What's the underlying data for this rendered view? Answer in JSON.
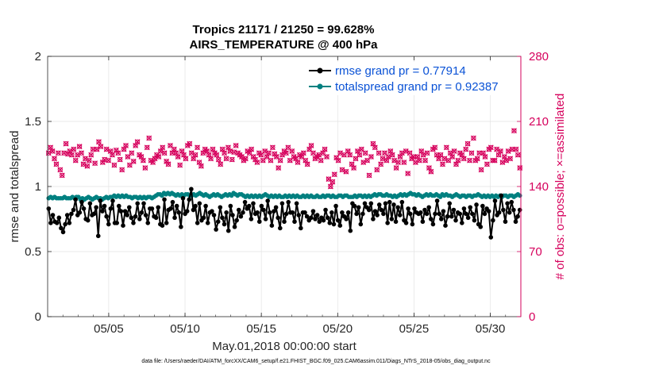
{
  "chart_data": {
    "type": "line",
    "title": "Tropics 21171 / 21250 = 99.628%",
    "subtitle": "AIRS_TEMPERATURE @ 400 hPa",
    "xlabel": "May.01,2018 00:00:00 start",
    "ylabel": "rmse and totalspread",
    "y2label": "# of obs: o=possible; ×=assimilated",
    "footnote": "data file: /Users/raeder/DAI/ATM_forcXX/CAM6_setup/f.e21.FHIST_BGC.f09_025.CAM6assim.011/Diags_NTrS_2018-05/obs_diag_output.nc",
    "xlim": [
      1,
      32
    ],
    "ylim": [
      0,
      2
    ],
    "y2lim": [
      0,
      280
    ],
    "xticks": [
      5,
      10,
      15,
      20,
      25,
      30
    ],
    "xticklabels": [
      "05/05",
      "05/10",
      "05/15",
      "05/20",
      "05/25",
      "05/30"
    ],
    "yticks": [
      0,
      0.5,
      1,
      1.5,
      2
    ],
    "yticklabels": [
      "0",
      "0.5",
      "1",
      "1.5",
      "2"
    ],
    "y2ticks": [
      0,
      70,
      140,
      210,
      280
    ],
    "y2ticklabels": [
      "0",
      "70",
      "140",
      "210",
      "280"
    ],
    "grid": true,
    "legend_position": "top-right",
    "colors": {
      "rmse": "#000000",
      "spread": "#008080",
      "obs": "#d6005c",
      "legend_text": "#0a52d6"
    },
    "series": [
      {
        "name": "rmse grand pr = 0.77914",
        "axis": "left",
        "marker": "circle",
        "values": [
          0.83,
          0.72,
          0.78,
          0.73,
          0.72,
          0.76,
          0.68,
          0.65,
          0.71,
          0.78,
          0.72,
          0.79,
          0.82,
          0.9,
          0.78,
          0.8,
          0.88,
          0.83,
          0.75,
          0.74,
          0.87,
          0.78,
          0.79,
          0.84,
          0.62,
          0.89,
          0.81,
          0.85,
          0.77,
          0.71,
          0.83,
          0.89,
          0.72,
          0.72,
          0.85,
          0.81,
          0.7,
          0.81,
          0.78,
          0.84,
          0.76,
          0.72,
          0.77,
          0.87,
          0.75,
          0.8,
          0.87,
          0.78,
          0.72,
          0.83,
          0.83,
          0.77,
          0.76,
          0.84,
          0.71,
          0.7,
          0.9,
          0.72,
          0.82,
          0.83,
          0.88,
          0.76,
          0.85,
          0.8,
          0.69,
          0.91,
          0.79,
          0.81,
          0.9,
          0.98,
          0.82,
          0.85,
          0.72,
          0.87,
          0.74,
          0.76,
          0.85,
          0.72,
          0.8,
          0.81,
          0.78,
          0.67,
          0.73,
          0.84,
          0.76,
          0.71,
          0.8,
          0.66,
          0.85,
          0.78,
          0.69,
          0.74,
          0.82,
          0.77,
          0.8,
          0.88,
          0.83,
          0.85,
          0.75,
          0.87,
          0.79,
          0.8,
          0.73,
          0.85,
          0.82,
          0.75,
          0.89,
          0.8,
          0.7,
          0.81,
          0.84,
          0.76,
          0.68,
          0.87,
          0.73,
          0.79,
          0.88,
          0.8,
          0.8,
          0.73,
          0.87,
          0.78,
          0.68,
          0.8,
          0.8,
          0.77,
          0.74,
          0.76,
          0.81,
          0.75,
          0.78,
          0.73,
          0.76,
          0.74,
          0.82,
          0.76,
          0.72,
          0.8,
          0.71,
          0.85,
          0.74,
          0.7,
          0.8,
          0.77,
          0.75,
          0.8,
          0.66,
          0.87,
          0.85,
          0.79,
          0.84,
          0.71,
          0.79,
          0.87,
          0.84,
          0.82,
          0.87,
          0.75,
          0.81,
          0.78,
          0.86,
          0.82,
          0.79,
          0.87,
          0.72,
          0.88,
          0.75,
          0.86,
          0.73,
          0.84,
          0.78,
          0.88,
          0.74,
          0.72,
          0.83,
          0.79,
          0.71,
          0.83,
          0.8,
          0.79,
          0.8,
          0.73,
          0.82,
          0.79,
          0.84,
          0.75,
          0.71,
          0.79,
          0.89,
          0.79,
          0.75,
          0.81,
          0.7,
          0.77,
          0.87,
          0.77,
          0.82,
          0.74,
          0.8,
          0.79,
          0.72,
          0.83,
          0.79,
          0.76,
          0.84,
          0.79,
          0.74,
          0.86,
          0.71,
          0.69,
          0.85,
          0.79,
          0.83,
          0.81,
          0.61,
          0.74,
          0.89,
          0.78,
          0.8,
          0.93,
          0.82,
          0.73,
          0.87,
          0.8,
          0.88,
          0.82,
          0.73,
          0.77,
          0.82
        ]
      },
      {
        "name": "totalspread grand pr = 0.92387",
        "axis": "left",
        "marker": "circle",
        "values": [
          0.91,
          0.92,
          0.91,
          0.92,
          0.91,
          0.91,
          0.91,
          0.91,
          0.92,
          0.91,
          0.91,
          0.91,
          0.92,
          0.91,
          0.92,
          0.92,
          0.9,
          0.91,
          0.9,
          0.91,
          0.92,
          0.91,
          0.9,
          0.91,
          0.92,
          0.91,
          0.91,
          0.9,
          0.91,
          0.92,
          0.91,
          0.92,
          0.92,
          0.93,
          0.92,
          0.93,
          0.92,
          0.93,
          0.92,
          0.93,
          0.92,
          0.92,
          0.91,
          0.92,
          0.92,
          0.91,
          0.92,
          0.91,
          0.92,
          0.91,
          0.92,
          0.92,
          0.91,
          0.92,
          0.93,
          0.94,
          0.94,
          0.93,
          0.95,
          0.94,
          0.95,
          0.94,
          0.95,
          0.94,
          0.93,
          0.94,
          0.93,
          0.94,
          0.93,
          0.94,
          0.94,
          0.93,
          0.93,
          0.94,
          0.93,
          0.94,
          0.95,
          0.94,
          0.93,
          0.94,
          0.93,
          0.92,
          0.93,
          0.94,
          0.93,
          0.94,
          0.93,
          0.92,
          0.93,
          0.94,
          0.93,
          0.94,
          0.93,
          0.95,
          0.94,
          0.93,
          0.94,
          0.94,
          0.93,
          0.92,
          0.93,
          0.92,
          0.93,
          0.92,
          0.93,
          0.92,
          0.93,
          0.92,
          0.93,
          0.94,
          0.93,
          0.92,
          0.93,
          0.92,
          0.93,
          0.92,
          0.93,
          0.92,
          0.92,
          0.93,
          0.92,
          0.93,
          0.92,
          0.93,
          0.92,
          0.93,
          0.92,
          0.92,
          0.93,
          0.92,
          0.93,
          0.92,
          0.93,
          0.92,
          0.92,
          0.93,
          0.92,
          0.92,
          0.93,
          0.92,
          0.93,
          0.93,
          0.92,
          0.93,
          0.92,
          0.92,
          0.93,
          0.93,
          0.92,
          0.93,
          0.93,
          0.92,
          0.92,
          0.92,
          0.93,
          0.92,
          0.93,
          0.93,
          0.92,
          0.93,
          0.92,
          0.93,
          0.92,
          0.93,
          0.94,
          0.93,
          0.94,
          0.94,
          0.93,
          0.93,
          0.94,
          0.93,
          0.93,
          0.92,
          0.93,
          0.92,
          0.93,
          0.94,
          0.93,
          0.94,
          0.93,
          0.94,
          0.95,
          0.94,
          0.94,
          0.93,
          0.94,
          0.93,
          0.92,
          0.93,
          0.94,
          0.93,
          0.94,
          0.93,
          0.93,
          0.94,
          0.93,
          0.92,
          0.94,
          0.93,
          0.94,
          0.93,
          0.93,
          0.92,
          0.93,
          0.94,
          0.93,
          0.92,
          0.93,
          0.93,
          0.92,
          0.93,
          0.93,
          0.92,
          0.93,
          0.93,
          0.94,
          0.93,
          0.92,
          0.93,
          0.92,
          0.93,
          0.92,
          0.93,
          0.92,
          0.93,
          0.92,
          0.93,
          0.92,
          0.93,
          0.93,
          0.92,
          0.93,
          0.93,
          0.92,
          0.93,
          0.94,
          0.93
        ]
      }
    ],
    "obs_counts": {
      "name": "# of obs",
      "axis": "right",
      "values": [
        176,
        182,
        178,
        170,
        164,
        176,
        158,
        152,
        176,
        186,
        175,
        178,
        174,
        180,
        168,
        174,
        183,
        176,
        164,
        170,
        162,
        168,
        174,
        180,
        165,
        180,
        188,
        183,
        166,
        169,
        180,
        168,
        178,
        174,
        163,
        179,
        176,
        169,
        158,
        180,
        184,
        172,
        163,
        176,
        167,
        184,
        188,
        174,
        172,
        168,
        160,
        182,
        192,
        168,
        166,
        170,
        174,
        172,
        178,
        182,
        176,
        167,
        164,
        184,
        176,
        180,
        176,
        172,
        163,
        178,
        174,
        170,
        184,
        186,
        176,
        170,
        174,
        182,
        166,
        162,
        176,
        180,
        178,
        174,
        170,
        180,
        176,
        174,
        169,
        164,
        180,
        176,
        170,
        182,
        178,
        169,
        177,
        184,
        176,
        174,
        172,
        168,
        170,
        178,
        176,
        180,
        172,
        169,
        166,
        176,
        174,
        168,
        178,
        172,
        176,
        168,
        182,
        175,
        172,
        160,
        168,
        174,
        178,
        176,
        182,
        168,
        178,
        172,
        170,
        166,
        174,
        172,
        176,
        168,
        164,
        180,
        184,
        176,
        170,
        172,
        174,
        168,
        176,
        180,
        172,
        148,
        140,
        145,
        153,
        171,
        168,
        176,
        158,
        174,
        156,
        178,
        174,
        164,
        160,
        170,
        178,
        174,
        180,
        166,
        176,
        168,
        152,
        172,
        186,
        182,
        158,
        176,
        164,
        170,
        176,
        168,
        172,
        178,
        174,
        168,
        160,
        166,
        172,
        176,
        166,
        178,
        154,
        176,
        170,
        172,
        166,
        172,
        168,
        178,
        174,
        168,
        176,
        160,
        156,
        180,
        182,
        174,
        170,
        174,
        164,
        170,
        182,
        168,
        176,
        172,
        178,
        164,
        168,
        176,
        174,
        170,
        180,
        186,
        168,
        176,
        192,
        168,
        170,
        176,
        158,
        176,
        172,
        164,
        180,
        182,
        168,
        168,
        180,
        174,
        178,
        166,
        172,
        168,
        178,
        170,
        180,
        200,
        180,
        174,
        160
      ]
    }
  }
}
